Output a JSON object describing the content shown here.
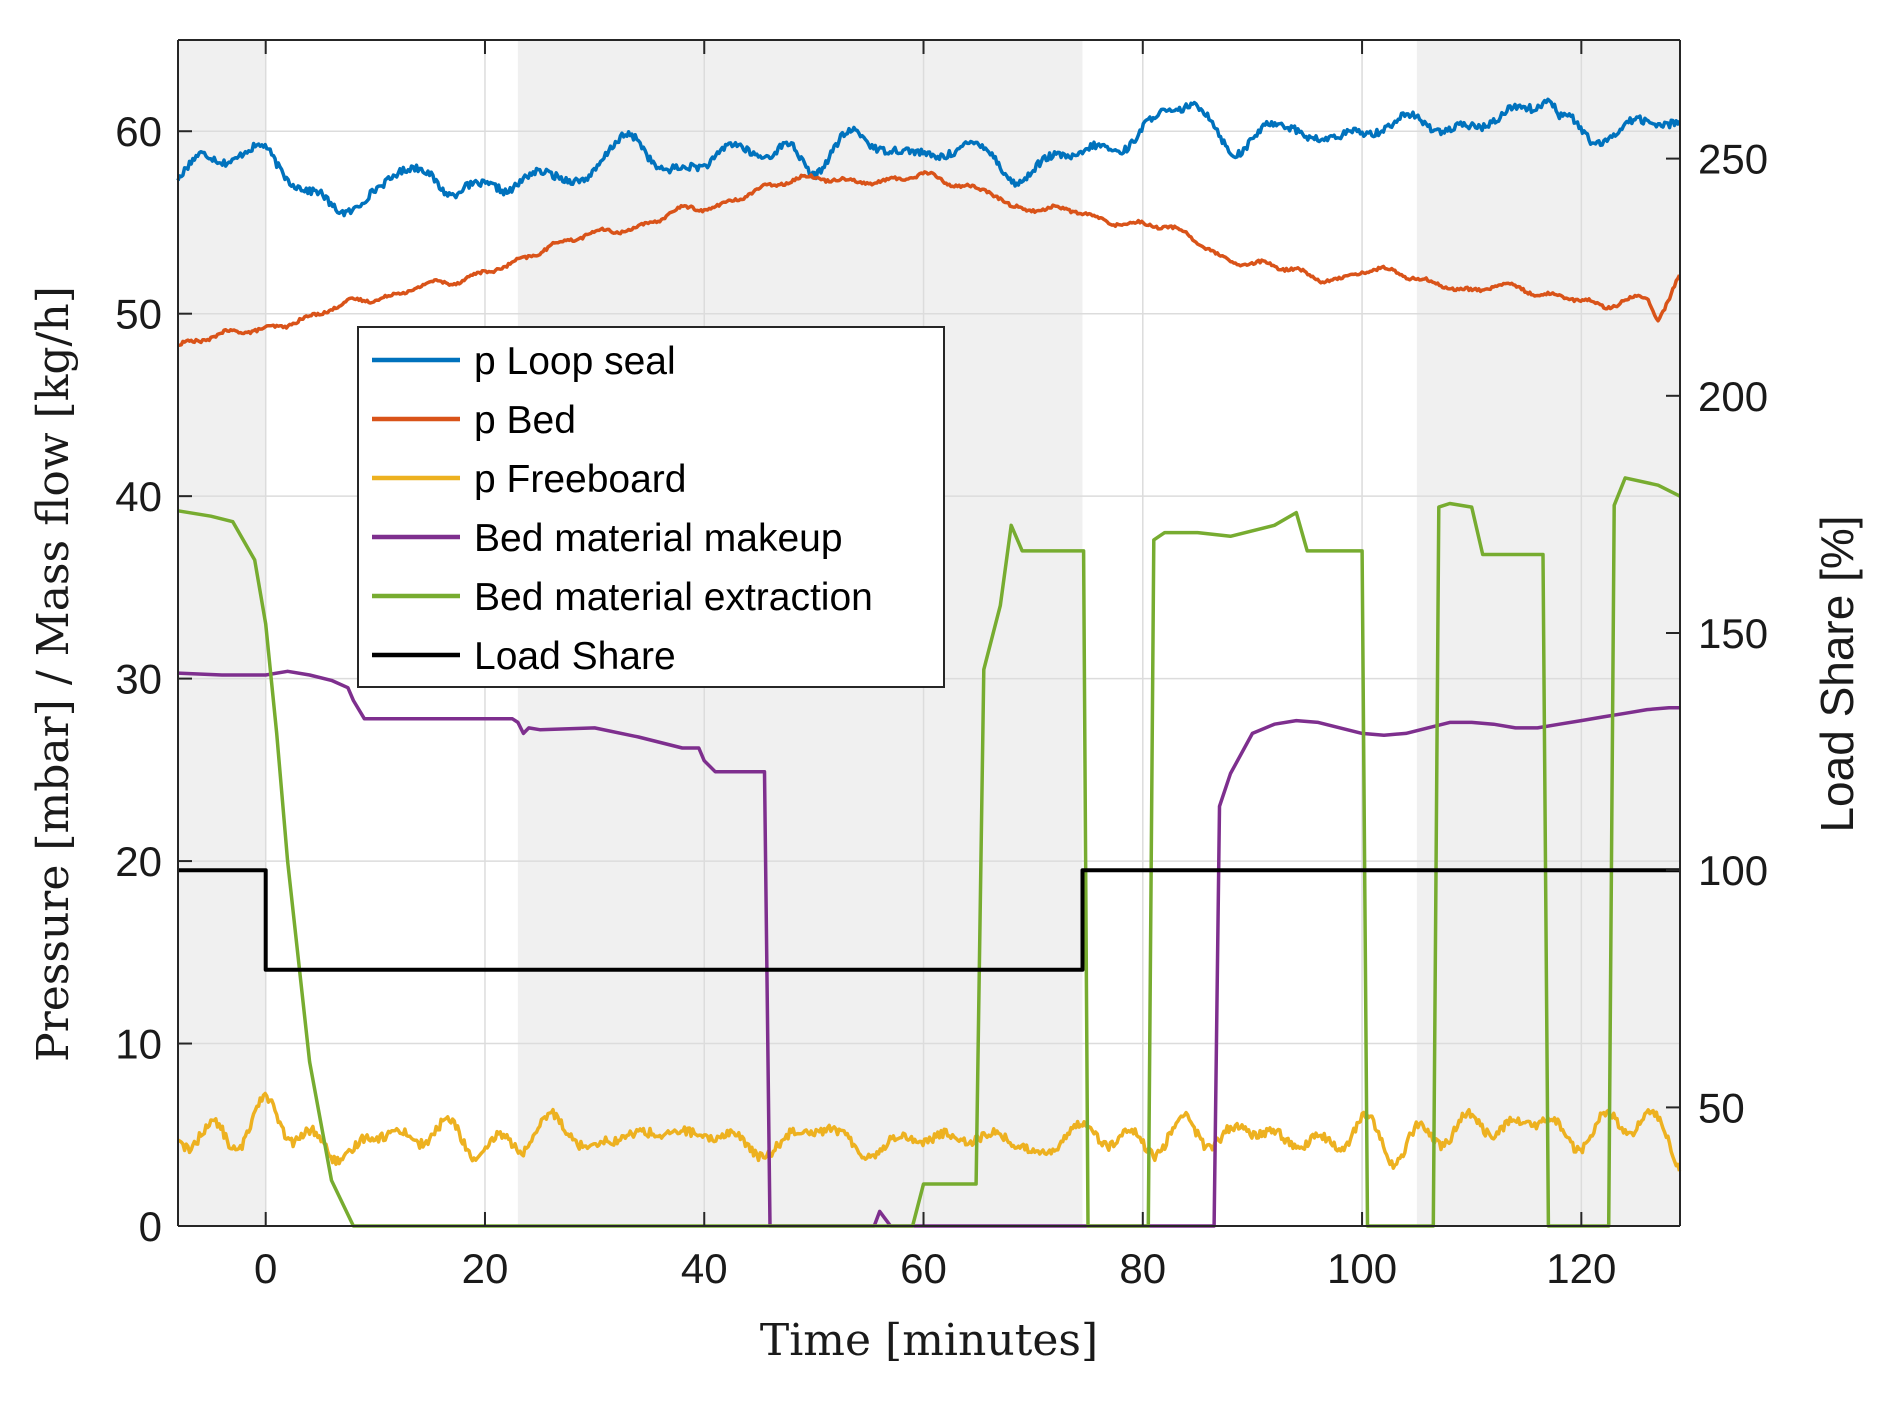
{
  "chart_data": {
    "type": "line",
    "title": "",
    "xlabel": "Time [minutes]",
    "ylabel_left": "Pressure [mbar] / Mass flow [kg/h]",
    "ylabel_right": "Load Share [%]",
    "xlim": [
      -8,
      129
    ],
    "ylim_left": [
      0,
      65
    ],
    "ylim_right": [
      25,
      275
    ],
    "x_ticks": [
      0,
      20,
      40,
      60,
      80,
      100,
      120
    ],
    "y_ticks_left": [
      0,
      10,
      20,
      30,
      40,
      50,
      60
    ],
    "y_ticks_right": [
      50,
      100,
      150,
      200,
      250
    ],
    "grid": true,
    "legend_position": "upper-left-inside",
    "shaded_intervals": [
      [
        -8,
        0
      ],
      [
        23,
        74.5
      ],
      [
        105,
        129
      ]
    ],
    "colors": {
      "shade": "#f0f0f0",
      "grid": "#dcdcdc",
      "axis": "#262626"
    },
    "series": [
      {
        "name": "p Loop seal",
        "axis": "left",
        "color": "#0072BD",
        "noise_amplitude": 0.9,
        "x": [
          -8,
          -6,
          -4,
          -2,
          0,
          2,
          4,
          6,
          8,
          10,
          12,
          14,
          16,
          18,
          20,
          22,
          24,
          26,
          28,
          30,
          32,
          34,
          36,
          38,
          40,
          42,
          44,
          46,
          48,
          50,
          52,
          54,
          56,
          58,
          60,
          62,
          64,
          66,
          68,
          70,
          72,
          74,
          76,
          78,
          80,
          82,
          84,
          86,
          88,
          90,
          92,
          94,
          96,
          98,
          100,
          102,
          104,
          106,
          108,
          110,
          112,
          114,
          116,
          117,
          118,
          120,
          122,
          124,
          126,
          128,
          129
        ],
        "values": [
          57,
          58.3,
          58.6,
          59.2,
          59.1,
          57.5,
          56,
          55.8,
          56.5,
          57,
          57.4,
          57,
          57.3,
          57.8,
          56.8,
          56.4,
          57.2,
          57.6,
          58,
          58.2,
          58.6,
          59.2,
          58.4,
          58,
          58.4,
          59,
          58.6,
          58.5,
          59.4,
          58.4,
          58.8,
          59.4,
          59.1,
          59,
          59.3,
          58.9,
          58.6,
          58.2,
          58.1,
          58.5,
          58.3,
          58.1,
          58.9,
          59.6,
          60.4,
          61,
          61.1,
          60.2,
          59.6,
          59.9,
          59.9,
          60,
          59.7,
          59.6,
          60,
          60.5,
          60.6,
          60.2,
          60,
          60.4,
          60.8,
          61.1,
          61.4,
          61.9,
          60.4,
          60.1,
          60.2,
          59.9,
          60.1,
          60.6,
          60.9
        ]
      },
      {
        "name": "p Bed",
        "axis": "left",
        "color": "#D95319",
        "noise_amplitude": 0.35,
        "x": [
          -8,
          -6,
          -4,
          -2,
          0,
          2,
          4,
          6,
          8,
          10,
          12,
          14,
          16,
          18,
          20,
          22,
          24,
          26,
          28,
          30,
          32,
          34,
          36,
          38,
          40,
          42,
          44,
          46,
          48,
          50,
          52,
          54,
          56,
          58,
          60,
          62,
          64,
          66,
          68,
          70,
          72,
          74,
          76,
          78,
          80,
          82,
          84,
          86,
          88,
          90,
          92,
          94,
          96,
          98,
          100,
          102,
          104,
          106,
          108,
          110,
          112,
          114,
          116,
          118,
          120,
          122,
          124,
          126,
          127,
          128,
          129
        ],
        "values": [
          48.1,
          48.6,
          49,
          49.2,
          49.2,
          49.3,
          49.6,
          50.2,
          50.6,
          50.9,
          51.2,
          51.5,
          51.8,
          52,
          52.2,
          52.5,
          53.2,
          53.6,
          53.9,
          54.3,
          54.7,
          55.1,
          55.3,
          55.5,
          55.8,
          56.2,
          56.5,
          56.8,
          57.2,
          57.4,
          57.5,
          57.4,
          57.3,
          57.5,
          57.6,
          57.2,
          57,
          56.6,
          55.6,
          55.8,
          55.8,
          55.6,
          55.3,
          55.2,
          55,
          54.6,
          54.1,
          53.6,
          53,
          52.5,
          52.4,
          52.6,
          52.1,
          52,
          52.4,
          52.3,
          52,
          51.7,
          51.4,
          51.2,
          51.5,
          51.4,
          51.3,
          51.2,
          50.7,
          50.4,
          50.8,
          50.7,
          49.4,
          50.5,
          52
        ]
      },
      {
        "name": "p Freeboard",
        "axis": "left",
        "color": "#EDB120",
        "noise_amplitude": 1.1,
        "x": [
          -8,
          -4,
          0,
          4,
          8,
          12,
          16,
          20,
          24,
          28,
          32,
          36,
          40,
          44,
          48,
          52,
          56,
          60,
          64,
          68,
          72,
          76,
          80,
          84,
          88,
          92,
          96,
          100,
          104,
          108,
          112,
          116,
          120,
          124,
          128,
          129
        ],
        "values": [
          4.5,
          5.5,
          5.6,
          4.8,
          4.3,
          5,
          4.9,
          4.7,
          4.7,
          5.1,
          4.9,
          5,
          4.9,
          4.6,
          4.8,
          4.8,
          4.6,
          4.7,
          4.8,
          4.7,
          4.6,
          4.7,
          5,
          5,
          4.9,
          5.1,
          4.8,
          4.5,
          4.9,
          5.2,
          5.4,
          5.6,
          5.3,
          5.2,
          5.4,
          4.4
        ]
      },
      {
        "name": "Bed material makeup",
        "axis": "left",
        "color": "#7E2F8E",
        "noise_amplitude": 0,
        "x": [
          -8,
          -4,
          0,
          2,
          4,
          6,
          7.5,
          8,
          9,
          12,
          16,
          20,
          22.5,
          23,
          23.5,
          24,
          25,
          30,
          34,
          38,
          39.5,
          40,
          41,
          44,
          45.5,
          46,
          55.5,
          56,
          56.5,
          57,
          74.5,
          86.5,
          87,
          88,
          90,
          92,
          94,
          96,
          98,
          100,
          102,
          104,
          106,
          108,
          110,
          112,
          114,
          116,
          118,
          120,
          122,
          124,
          126,
          128,
          129
        ],
        "values": [
          30.3,
          30.2,
          30.2,
          30.4,
          30.2,
          29.9,
          29.5,
          28.8,
          27.8,
          27.8,
          27.8,
          27.8,
          27.8,
          27.6,
          27,
          27.3,
          27.2,
          27.3,
          26.8,
          26.2,
          26.2,
          25.5,
          24.9,
          24.9,
          24.9,
          0,
          0,
          0.8,
          0.4,
          0,
          0,
          0,
          23,
          24.8,
          27,
          27.5,
          27.7,
          27.6,
          27.3,
          27,
          26.9,
          27,
          27.3,
          27.6,
          27.6,
          27.5,
          27.3,
          27.3,
          27.5,
          27.7,
          27.9,
          28.1,
          28.3,
          28.4,
          28.4
        ]
      },
      {
        "name": "Bed material extraction",
        "axis": "left",
        "color": "#77AC30",
        "noise_amplitude": 0,
        "x": [
          -8,
          -5,
          -3,
          -1,
          0,
          1,
          2,
          4,
          6,
          8,
          59,
          60,
          64.8,
          65.5,
          67,
          68,
          69,
          74,
          74.6,
          75,
          80.5,
          81,
          82,
          85,
          88,
          92,
          94,
          95,
          100,
          100.5,
          101,
          106.5,
          107,
          108,
          110,
          111,
          116.5,
          117,
          122.5,
          123,
          124,
          127,
          129
        ],
        "values": [
          39.2,
          38.9,
          38.6,
          36.5,
          33,
          27,
          20,
          9,
          2.5,
          0,
          0,
          2.3,
          2.3,
          30.5,
          34,
          38.4,
          37,
          37,
          37,
          0,
          0,
          37.6,
          38,
          38,
          37.8,
          38.4,
          39.1,
          37,
          37,
          0,
          0,
          0,
          39.4,
          39.6,
          39.4,
          36.8,
          36.8,
          0,
          0,
          39.5,
          41,
          40.6,
          40
        ]
      },
      {
        "name": "Load Share",
        "axis": "right",
        "color": "#000000",
        "noise_amplitude": 0,
        "x": [
          -8,
          0,
          0,
          74.5,
          74.5,
          129
        ],
        "values": [
          100,
          100,
          79,
          79,
          100,
          100
        ]
      }
    ]
  }
}
